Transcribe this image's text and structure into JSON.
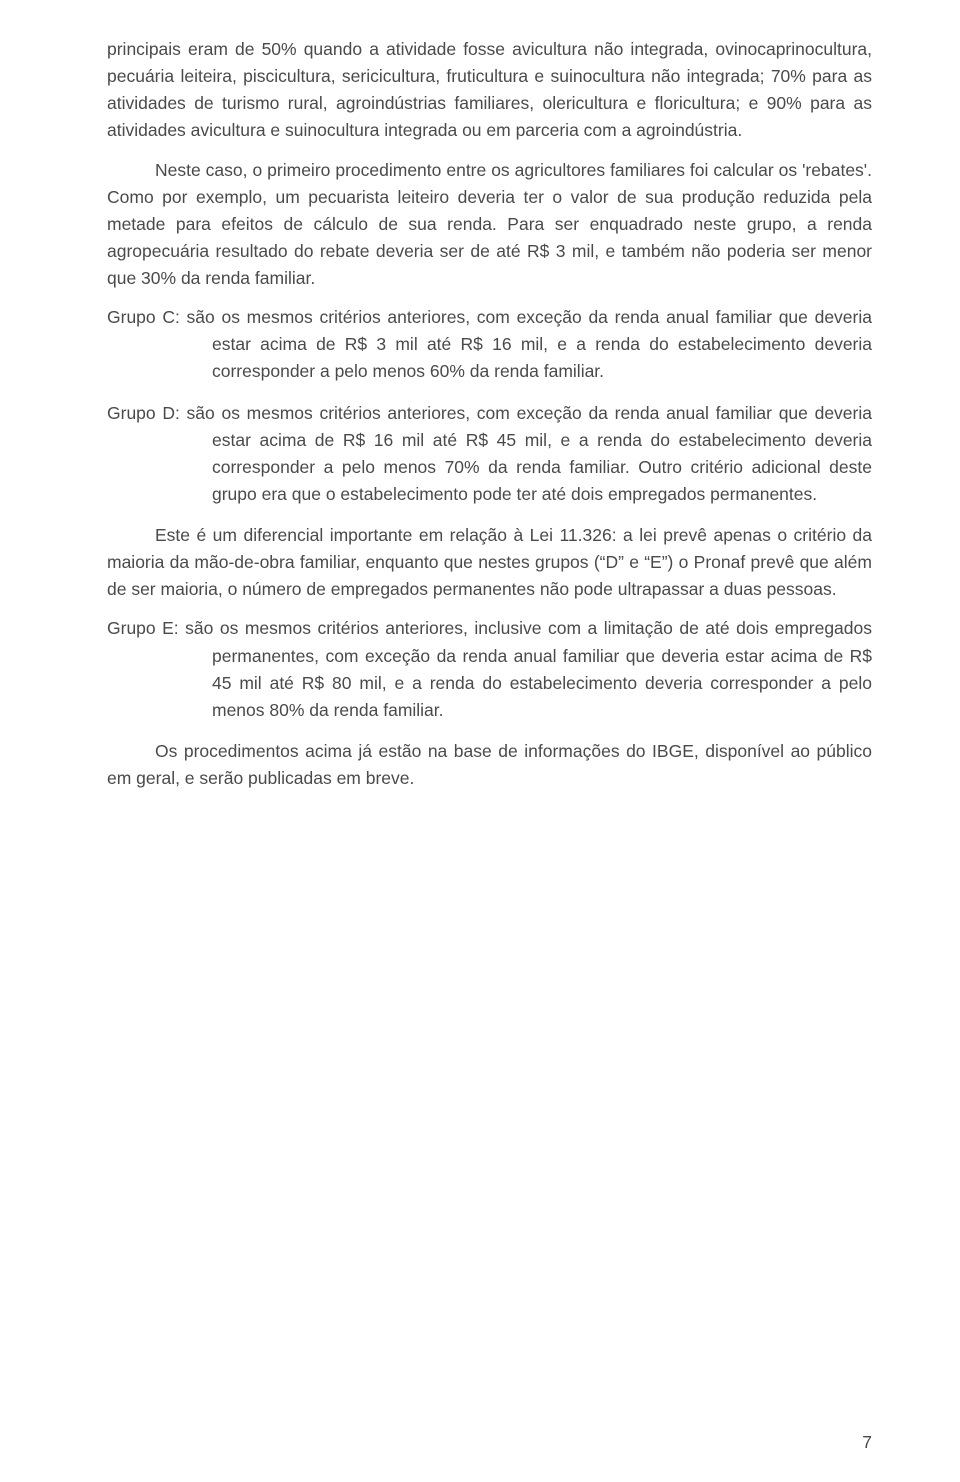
{
  "paragraphs": {
    "p1": "principais eram de 50% quando a atividade fosse avicultura não integrada, ovinocaprinocultura, pecuária leiteira, piscicultura, sericicultura, fruticultura e suinocultura não integrada; 70% para as atividades de turismo rural, agroindústrias familiares, olericultura e floricultura; e 90% para as atividades avicultura e suinocultura integrada ou em parceria com a agroindústria.",
    "p2": "Neste caso, o primeiro procedimento entre os agricultores familiares foi calcular os 'rebates'. Como por exemplo, um pecuarista leiteiro deveria ter o valor de sua produção reduzida pela metade para efeitos de cálculo de sua renda. Para ser enquadrado neste grupo, a renda agropecuária resultado do rebate deveria ser de até R$ 3 mil, e também não poderia ser menor que 30% da renda familiar.",
    "d1": "Grupo C: são os mesmos critérios anteriores, com exceção da renda anual familiar que deveria estar acima de R$ 3 mil até R$ 16 mil, e a renda do estabelecimento deveria corresponder a pelo menos 60% da renda familiar.",
    "d2": "Grupo D: são os mesmos critérios anteriores, com exceção da renda anual familiar que deveria estar acima de R$ 16 mil até R$ 45 mil, e a renda do estabelecimento deveria corresponder a pelo menos 70% da renda familiar. Outro critério adicional deste grupo era que o estabelecimento pode ter até dois empregados permanentes.",
    "p3": "Este é um diferencial importante em relação à Lei 11.326: a lei prevê apenas o critério da maioria da mão-de-obra familiar, enquanto que nestes grupos (“D” e “E”) o Pronaf prevê que além de ser maioria, o número de empregados permanentes não pode ultrapassar a duas pessoas.",
    "d3": "Grupo E: são os mesmos critérios anteriores, inclusive com a limitação de até dois empregados permanentes, com exceção da renda anual familiar que deveria estar acima de R$ 45 mil até R$ 80 mil, e a renda do estabelecimento deveria corresponder a pelo menos 80% da renda familiar.",
    "p4": "Os procedimentos acima já estão na base de informações do IBGE, disponível ao público em geral, e serão publicadas em breve."
  },
  "page_number": "7",
  "style": {
    "text_color": "#4a4a4a",
    "background_color": "#ffffff",
    "font_size_pt": 13,
    "line_height": 1.55
  }
}
